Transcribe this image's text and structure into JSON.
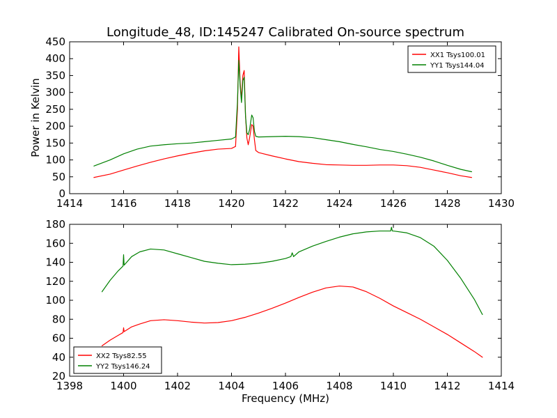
{
  "chart_data": [
    {
      "type": "line",
      "title": "Longitude_48, ID:145247 Calibrated On-source spectrum",
      "xlabel": "",
      "ylabel": "Power in Kelvin",
      "xlim": [
        1414,
        1430
      ],
      "ylim": [
        0,
        450
      ],
      "xticks": [
        "1414",
        "1416",
        "1418",
        "1420",
        "1422",
        "1424",
        "1426",
        "1428",
        "1430"
      ],
      "yticks": [
        "0",
        "50",
        "100",
        "150",
        "200",
        "250",
        "300",
        "350",
        "400",
        "450"
      ],
      "legend_position": "top-right",
      "series": [
        {
          "name": "XX1 Tsys100.01",
          "color": "#ff0000",
          "x": [
            1414.9,
            1415.5,
            1416,
            1416.5,
            1417,
            1417.5,
            1418,
            1418.5,
            1419,
            1419.5,
            1420,
            1420.15,
            1420.22,
            1420.27,
            1420.32,
            1420.37,
            1420.42,
            1420.47,
            1420.52,
            1420.57,
            1420.62,
            1420.67,
            1420.75,
            1420.8,
            1420.85,
            1420.9,
            1421,
            1421.5,
            1422,
            1422.5,
            1423,
            1423.5,
            1424,
            1424.5,
            1425,
            1425.5,
            1426,
            1426.5,
            1427,
            1427.5,
            1428,
            1428.5,
            1428.9
          ],
          "y": [
            48,
            58,
            70,
            82,
            93,
            103,
            112,
            120,
            127,
            132,
            134,
            140,
            250,
            435,
            330,
            280,
            350,
            365,
            230,
            165,
            145,
            165,
            205,
            200,
            160,
            128,
            122,
            112,
            103,
            95,
            90,
            86,
            85,
            84,
            84,
            85,
            85,
            83,
            78,
            70,
            62,
            53,
            48
          ]
        },
        {
          "name": "YY1 Tsys144.04",
          "color": "#008000",
          "x": [
            1414.9,
            1415.5,
            1416,
            1416.5,
            1417,
            1417.5,
            1418,
            1418.5,
            1419,
            1419.5,
            1420,
            1420.15,
            1420.22,
            1420.27,
            1420.32,
            1420.37,
            1420.42,
            1420.47,
            1420.52,
            1420.57,
            1420.62,
            1420.67,
            1420.75,
            1420.8,
            1420.85,
            1420.9,
            1421,
            1421.5,
            1422,
            1422.5,
            1423,
            1423.5,
            1424,
            1424.5,
            1425,
            1425.5,
            1426,
            1426.5,
            1427,
            1427.5,
            1428,
            1428.5,
            1428.9
          ],
          "y": [
            82,
            100,
            118,
            132,
            141,
            145,
            148,
            150,
            154,
            158,
            162,
            168,
            270,
            395,
            320,
            270,
            335,
            345,
            230,
            180,
            175,
            190,
            233,
            225,
            185,
            170,
            168,
            169,
            170,
            169,
            166,
            160,
            154,
            146,
            139,
            131,
            125,
            117,
            108,
            97,
            84,
            72,
            65
          ]
        }
      ]
    },
    {
      "type": "line",
      "title": "",
      "xlabel": "Frequency (MHz)",
      "ylabel": "",
      "xlim": [
        1398,
        1414
      ],
      "ylim": [
        20,
        180
      ],
      "xticks": [
        "1398",
        "1400",
        "1402",
        "1404",
        "1406",
        "1408",
        "1410",
        "1412",
        "1414"
      ],
      "yticks": [
        "20",
        "40",
        "60",
        "80",
        "100",
        "120",
        "140",
        "160",
        "180"
      ],
      "legend_position": "bottom-left",
      "series": [
        {
          "name": "XX2 Tsys82.55",
          "color": "#ff0000",
          "x": [
            1399.2,
            1399.5,
            1399.8,
            1399.98,
            1400.0,
            1400.02,
            1400.3,
            1400.6,
            1401,
            1401.5,
            1402,
            1402.5,
            1403,
            1403.5,
            1404,
            1404.5,
            1405,
            1405.5,
            1406,
            1406.5,
            1407,
            1407.5,
            1408,
            1408.5,
            1409,
            1409.5,
            1410,
            1410.5,
            1411,
            1411.5,
            1412,
            1412.5,
            1413,
            1413.3
          ],
          "y": [
            52,
            58,
            63,
            66,
            71,
            67,
            72,
            75,
            78.5,
            79.5,
            78.5,
            77,
            76,
            76.5,
            78.5,
            82,
            86.5,
            91.5,
            97,
            103,
            108.5,
            113,
            115,
            114,
            109,
            102,
            94,
            87,
            80,
            72,
            64,
            55,
            46,
            40
          ]
        },
        {
          "name": "YY2 Tsys146.24",
          "color": "#008000",
          "x": [
            1399.2,
            1399.5,
            1399.8,
            1399.98,
            1400.0,
            1400.02,
            1400.3,
            1400.6,
            1401,
            1401.5,
            1402,
            1402.5,
            1403,
            1403.5,
            1404,
            1404.5,
            1405,
            1405.5,
            1406,
            1406.2,
            1406.25,
            1406.3,
            1406.5,
            1407,
            1407.5,
            1408,
            1408.5,
            1409,
            1409.5,
            1409.9,
            1409.93,
            1409.96,
            1410,
            1410.5,
            1411,
            1411.5,
            1412,
            1412.5,
            1413,
            1413.3
          ],
          "y": [
            109,
            121,
            131,
            136,
            148,
            137,
            146,
            151,
            154,
            153,
            149,
            145,
            141,
            139,
            137.5,
            138,
            139,
            141,
            144,
            146,
            150,
            146,
            151,
            157,
            162,
            166.5,
            170,
            172,
            173,
            173,
            177,
            173,
            173,
            171,
            166,
            157,
            142,
            123,
            101,
            85
          ]
        }
      ]
    }
  ]
}
